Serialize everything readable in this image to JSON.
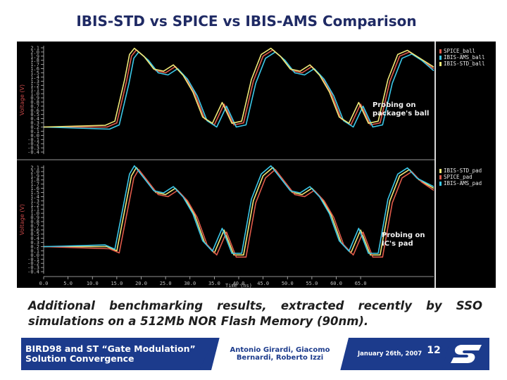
{
  "title": "IBIS-STD vs SPICE vs IBIS-AMS Comparison",
  "caption": "Additional benchmarking results, extracted recently by SSO simulations on a 512Mb NOR Flash Memory (90nm).",
  "footer": {
    "title_line1": "BIRD98 and ST “Gate Modulation”",
    "title_line2": "Solution Convergence",
    "authors_line1": "Antonio Girardi, Giacomo",
    "authors_line2": "Bernardi, Roberto Izzi",
    "date": "January 26th, 2007",
    "page": "12",
    "logo_alt": "ST"
  },
  "colors": {
    "spice": "#e05a4a",
    "ams": "#3cc8e8",
    "std": "#f0e878"
  },
  "chart_data": [
    {
      "type": "line",
      "annotation": "Probing on package's ball",
      "ylabel": "Voltage (V)",
      "y_ticks": [
        "2.1",
        "2.0",
        "1.9",
        "1.8",
        "1.7",
        "1.6",
        "1.5",
        "1.4",
        "1.3",
        "1.2",
        "1.1",
        "1.0",
        "0.9",
        "0.8",
        "0.7",
        "0.6",
        "0.5",
        "0.4",
        "0.3",
        "0.2",
        "0.1",
        "0.0",
        "-0.1",
        "-0.2",
        "-0.3",
        "-0.4"
      ],
      "ylim": [
        -0.45,
        2.15
      ],
      "xlim": [
        0,
        80
      ],
      "legend_position": "top-right",
      "series": [
        {
          "name": "SPICE_ball",
          "color": "#e05a4a"
        },
        {
          "name": "IBIS-AMS_ball",
          "color": "#3cc8e8"
        },
        {
          "name": "IBIS-STD_ball",
          "color": "#f0e878"
        }
      ],
      "approx_waveform": {
        "x": [
          0,
          13,
          15,
          17,
          18,
          19,
          21,
          23,
          25,
          27,
          29,
          31,
          33,
          35,
          37,
          39,
          41,
          43,
          45,
          47,
          49,
          51,
          53,
          55,
          57,
          59,
          61,
          63,
          65,
          67,
          69,
          71,
          73,
          75,
          77,
          80
        ],
        "y": [
          0.2,
          0.2,
          0.3,
          1.3,
          1.9,
          2.05,
          1.85,
          1.55,
          1.5,
          1.65,
          1.4,
          1.0,
          0.4,
          0.25,
          0.75,
          0.25,
          0.3,
          1.3,
          1.9,
          2.05,
          1.85,
          1.55,
          1.5,
          1.65,
          1.4,
          1.0,
          0.4,
          0.25,
          0.75,
          0.25,
          0.3,
          1.3,
          1.9,
          2.0,
          1.85,
          1.6
        ]
      }
    },
    {
      "type": "line",
      "annotation": "Probing on IC's pad",
      "ylabel": "Voltage (V)",
      "xlabel": "Time (ns)",
      "y_ticks": [
        "2.1",
        "2.0",
        "1.9",
        "1.8",
        "1.7",
        "1.6",
        "1.5",
        "1.4",
        "1.3",
        "1.2",
        "1.1",
        "1.0",
        "0.9",
        "0.8",
        "0.7",
        "0.6",
        "0.5",
        "0.4",
        "0.3",
        "0.2",
        "0.1",
        "0.0",
        "-0.1",
        "-0.2",
        "-0.3",
        "-0.4"
      ],
      "x_ticks": [
        "0.0",
        "5.0",
        "10.0",
        "15.0",
        "20.0",
        "25.0",
        "30.0",
        "35.0",
        "40.0",
        "45.0",
        "50.0",
        "55.0",
        "60.0",
        "65.0"
      ],
      "ylim": [
        -0.45,
        2.15
      ],
      "xlim": [
        0,
        80
      ],
      "legend_position": "top-right",
      "series": [
        {
          "name": "IBIS-STD_pad",
          "color": "#f0e878"
        },
        {
          "name": "SPICE_pad",
          "color": "#e05a4a"
        },
        {
          "name": "IBIS-AMS_pad",
          "color": "#3cc8e8"
        }
      ],
      "approx_waveform": {
        "x": [
          0,
          13,
          15,
          17,
          18,
          19,
          21,
          23,
          25,
          27,
          29,
          31,
          33,
          35,
          37,
          39,
          41,
          43,
          45,
          47,
          49,
          51,
          53,
          55,
          57,
          59,
          61,
          63,
          65,
          67,
          69,
          71,
          73,
          75,
          77,
          80
        ],
        "y": [
          0.2,
          0.2,
          0.1,
          1.3,
          1.9,
          2.1,
          1.8,
          1.5,
          1.45,
          1.6,
          1.35,
          0.95,
          0.3,
          0.05,
          0.6,
          0.0,
          0.0,
          1.3,
          1.9,
          2.1,
          1.8,
          1.5,
          1.45,
          1.6,
          1.35,
          0.95,
          0.3,
          0.05,
          0.6,
          0.0,
          0.0,
          1.3,
          1.9,
          2.05,
          1.8,
          1.6
        ]
      }
    }
  ]
}
